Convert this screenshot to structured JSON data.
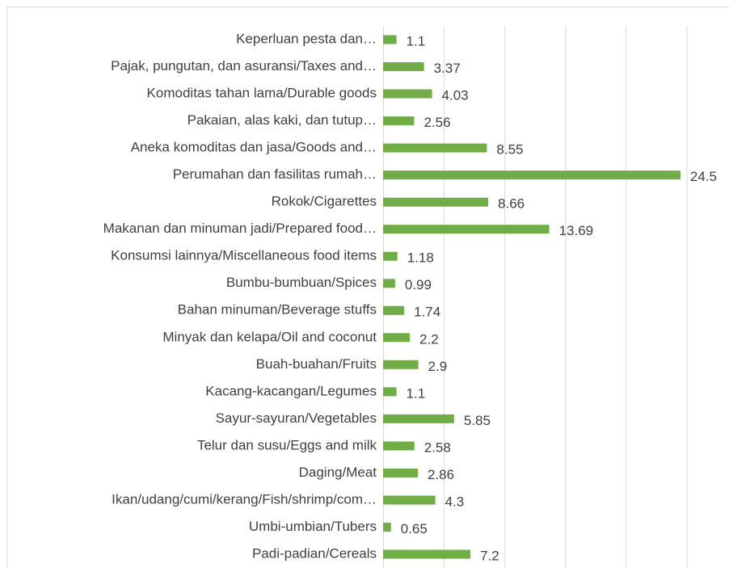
{
  "chart_data": {
    "type": "barh",
    "categories": [
      "Keperluan pesta dan…",
      "Pajak, pungutan, dan asuransi/Taxes and…",
      "Komoditas tahan lama/Durable goods",
      "Pakaian, alas kaki, dan tutup…",
      "Aneka komoditas dan jasa/Goods and…",
      "Perumahan dan fasilitas rumah…",
      "Rokok/Cigarettes",
      "Makanan dan minuman jadi/Prepared food…",
      "Konsumsi lainnya/Miscellaneous food items",
      "Bumbu-bumbuan/Spices",
      "Bahan minuman/Beverage stuffs",
      "Minyak dan kelapa/Oil and coconut",
      "Buah-buahan/Fruits",
      "Kacang-kacangan/Legumes",
      "Sayur-sayuran/Vegetables",
      "Telur dan susu/Eggs and milk",
      "Daging/Meat",
      "Ikan/udang/cumi/kerang/Fish/shrimp/com…",
      "Umbi-umbian/Tubers",
      "Padi-padian/Cereals"
    ],
    "values": [
      1.1,
      3.37,
      4.03,
      2.56,
      8.55,
      24.5,
      8.66,
      13.69,
      1.18,
      0.99,
      1.74,
      2.2,
      2.9,
      1.1,
      5.85,
      2.58,
      2.86,
      4.3,
      0.65,
      7.2
    ],
    "color": "#70ad47",
    "xlim": [
      0,
      28.5
    ],
    "xticks": [
      0,
      5,
      10,
      15,
      20,
      25
    ],
    "grid": true
  }
}
